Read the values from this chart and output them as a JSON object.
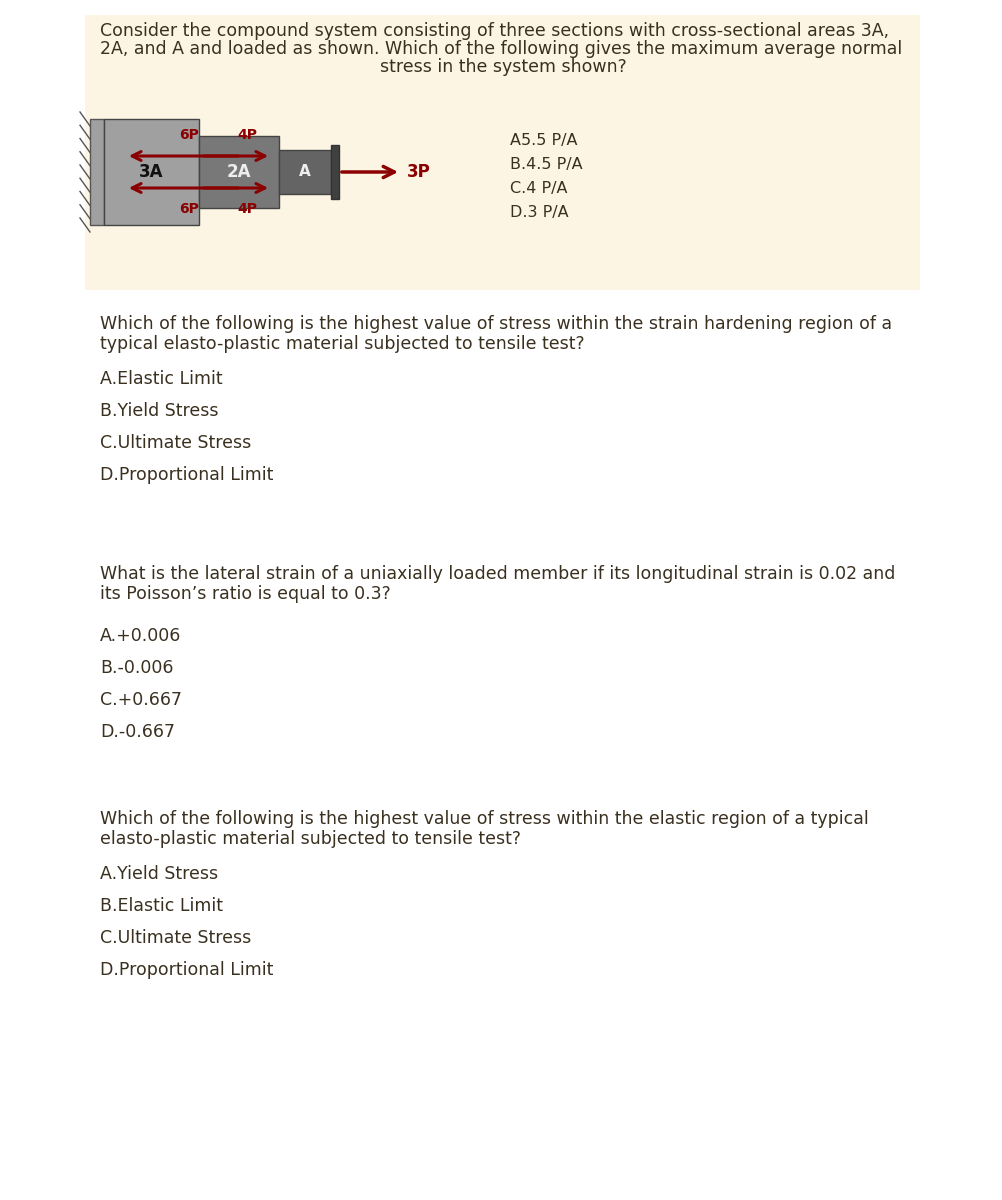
{
  "bg_color": "#ffffff",
  "text_color": "#3a3020",
  "q1_question_line1": "Consider the compound system consisting of three sections with cross-sectional areas 3A,",
  "q1_question_line2": "2A, and A and loaded as shown. Which of the following gives the maximum average normal",
  "q1_question_line3": "stress in the system shown?",
  "q1_options": [
    "A5.5 P/A",
    "B.4.5 P/A",
    "C.4 P/A",
    "D.3 P/A"
  ],
  "q1_bg": "#fdf5e4",
  "q2_question_line1": "Which of the following is the highest value of stress within the strain hardening region of a",
  "q2_question_line2": "typical elasto-plastic material subjected to tensile test?",
  "q2_options": [
    "A.Elastic Limit",
    "B.Yield Stress",
    "C.Ultimate Stress",
    "D.Proportional Limit"
  ],
  "q3_question_line1": "What is the lateral strain of a uniaxially loaded member if its longitudinal strain is 0.02 and",
  "q3_question_line2": "its Poisson’s ratio is equal to 0.3?",
  "q3_options": [
    "A.+0.006",
    "B.-0.006",
    "C.+0.667",
    "D.-0.667"
  ],
  "q4_question_line1": "Which of the following is the highest value of stress within the elastic region of a typical",
  "q4_question_line2": "elasto-plastic material subjected to tensile test?",
  "q4_options": [
    "A.Yield Stress",
    "B.Elastic Limit",
    "C.Ultimate Stress",
    "D.Proportional Limit"
  ],
  "arrow_color": "#8b0000",
  "block_color_3A": "#a0a0a0",
  "block_color_2A": "#787878",
  "block_color_A": "#646464",
  "block_color_dark": "#404040",
  "wall_color": "#a0a0a0",
  "font_size_body": 12.5,
  "font_size_option": 12.5
}
